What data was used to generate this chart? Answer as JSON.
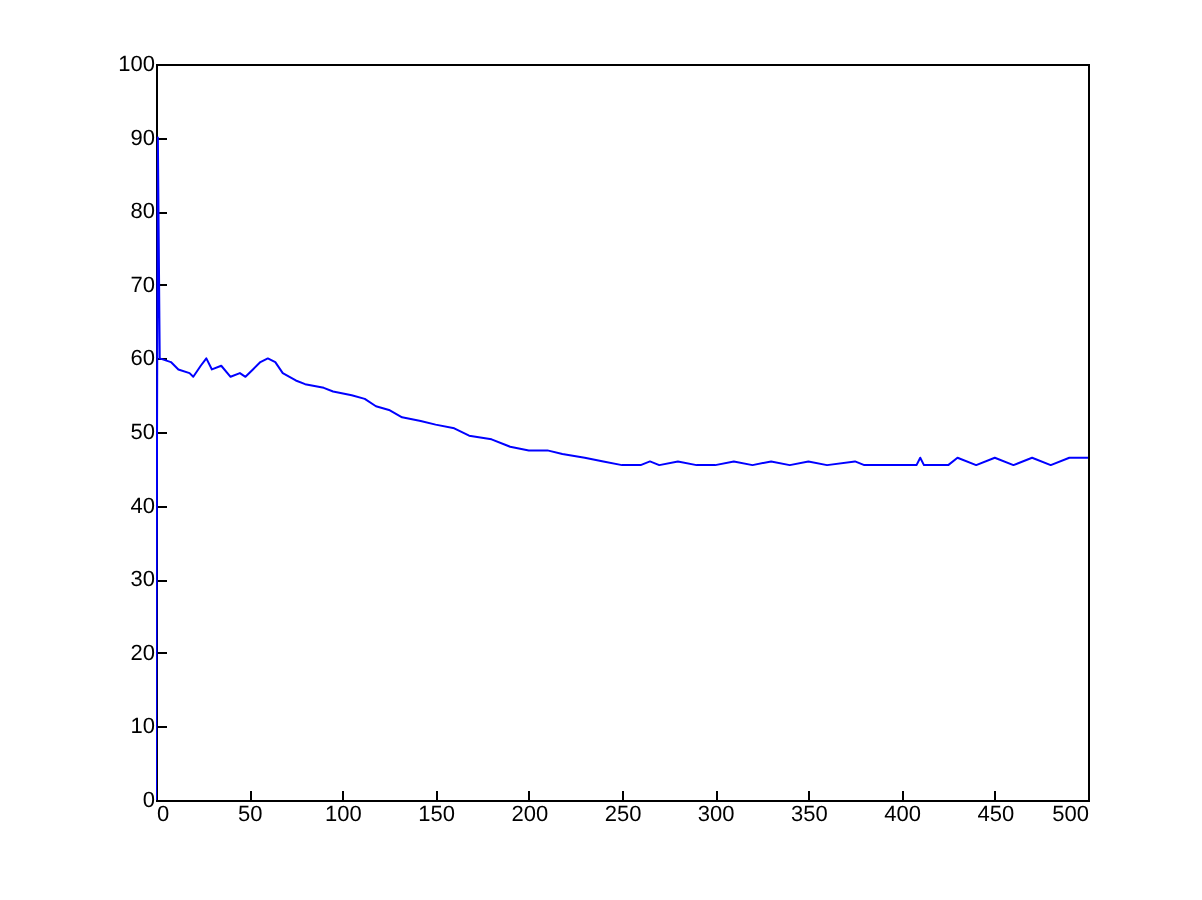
{
  "chart_data": {
    "type": "line",
    "xlim": [
      0,
      500
    ],
    "ylim": [
      0,
      100
    ],
    "xticks": [
      0,
      50,
      100,
      150,
      200,
      250,
      300,
      350,
      400,
      450,
      500
    ],
    "yticks": [
      0,
      10,
      20,
      30,
      40,
      50,
      60,
      70,
      80,
      90,
      100
    ],
    "grid": false,
    "series": [
      {
        "color": "#0000ff",
        "x": [
          0,
          1,
          2,
          8,
          12,
          18,
          20,
          24,
          27,
          30,
          35,
          40,
          45,
          48,
          52,
          56,
          60,
          64,
          68,
          75,
          80,
          90,
          95,
          105,
          112,
          118,
          125,
          132,
          142,
          150,
          160,
          168,
          180,
          190,
          200,
          210,
          218,
          230,
          240,
          250,
          260,
          265,
          270,
          280,
          290,
          300,
          310,
          320,
          330,
          340,
          350,
          360,
          375,
          380,
          408,
          410,
          412,
          425,
          430,
          440,
          450,
          460,
          470,
          480,
          490,
          500
        ],
        "values": [
          0,
          90,
          60,
          59.5,
          58.5,
          58,
          57.5,
          59,
          60,
          58.5,
          59,
          57.5,
          58,
          57.5,
          58.5,
          59.5,
          60,
          59.5,
          58,
          57,
          56.5,
          56,
          55.5,
          55,
          54.5,
          53.5,
          53,
          52,
          51.5,
          51,
          50.5,
          49.5,
          49,
          48,
          47.5,
          47.5,
          47,
          46.5,
          46,
          45.5,
          45.5,
          46,
          45.5,
          46,
          45.5,
          45.5,
          46,
          45.5,
          46,
          45.5,
          46,
          45.5,
          46,
          45.5,
          45.5,
          46.5,
          45.5,
          45.5,
          46.5,
          45.5,
          46.5,
          45.5,
          46.5,
          45.5,
          46.5,
          46.5
        ]
      }
    ]
  }
}
